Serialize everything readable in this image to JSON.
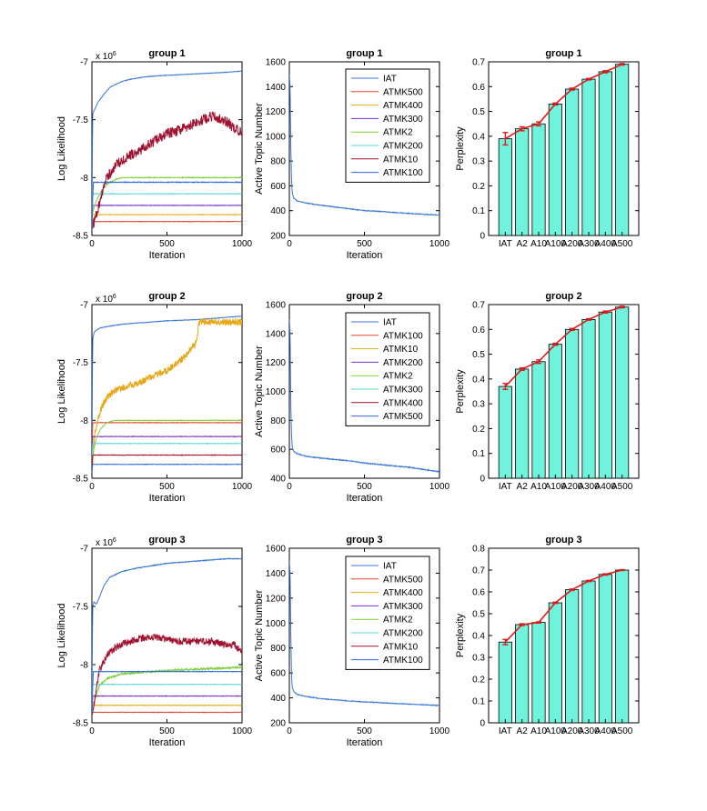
{
  "figure": {
    "rows": 3,
    "columns": [
      "log_likelihood",
      "active_topics",
      "perplexity"
    ]
  },
  "chart_data": [
    {
      "type": "line",
      "panel": "loglik",
      "group": 1,
      "title": "group 1",
      "xlabel": "Iteration",
      "ylabel": "Log Likelihood",
      "exponent_label": "x 10",
      "exponent_power": "6",
      "xlim": [
        0,
        1000
      ],
      "ylim": [
        -8.5,
        -7
      ],
      "xticks": [
        0,
        500,
        1000
      ],
      "xticklabels": [
        "0",
        "500",
        "1000"
      ],
      "yticks": [
        -8.5,
        -8,
        -7.5,
        -7
      ],
      "yticklabels": [
        "-8.5",
        "-8",
        "-7.5",
        "-7"
      ],
      "series": [
        {
          "name": "IAT",
          "color": "#3a78d8",
          "x": [
            0,
            5,
            15,
            40,
            80,
            120,
            150,
            200,
            260,
            350,
            450,
            600,
            750,
            900,
            1000
          ],
          "y": [
            -8.45,
            -7.45,
            -7.42,
            -7.35,
            -7.28,
            -7.22,
            -7.2,
            -7.17,
            -7.15,
            -7.13,
            -7.12,
            -7.11,
            -7.1,
            -7.09,
            -7.08
          ],
          "noise": 0.002
        },
        {
          "name": "ATMK500",
          "color": "#e2492f",
          "x": [
            0,
            5,
            1000
          ],
          "y": [
            -8.45,
            -8.38,
            -8.38
          ],
          "noise": 0.002
        },
        {
          "name": "ATMK400",
          "color": "#e6a817",
          "x": [
            0,
            5,
            1000
          ],
          "y": [
            -8.45,
            -8.32,
            -8.32
          ],
          "noise": 0.002
        },
        {
          "name": "ATMK300",
          "color": "#7c2fc4",
          "x": [
            0,
            5,
            1000
          ],
          "y": [
            -8.45,
            -8.24,
            -8.24
          ],
          "noise": 0.002
        },
        {
          "name": "ATMK2",
          "color": "#7ed13a",
          "x": [
            0,
            5,
            30,
            60,
            100,
            150,
            200,
            1000
          ],
          "y": [
            -8.45,
            -8.3,
            -8.2,
            -8.12,
            -8.06,
            -8.02,
            -8.0,
            -8.0
          ],
          "noise": 0.003
        },
        {
          "name": "ATMK200",
          "color": "#5bd6d8",
          "x": [
            0,
            5,
            1000
          ],
          "y": [
            -8.45,
            -8.14,
            -8.14
          ],
          "noise": 0.002
        },
        {
          "name": "ATMK10",
          "color": "#a0102f",
          "x": [
            0,
            100,
            150,
            200,
            300,
            400,
            500,
            600,
            700,
            800,
            900,
            950,
            1000
          ],
          "y": [
            -8.45,
            -8.0,
            -7.9,
            -7.85,
            -7.78,
            -7.7,
            -7.62,
            -7.58,
            -7.52,
            -7.47,
            -7.52,
            -7.58,
            -7.6
          ],
          "noise": 0.045
        },
        {
          "name": "ATMK100",
          "color": "#2f6cd6",
          "x": [
            0,
            5,
            10,
            1000
          ],
          "y": [
            -8.45,
            -8.2,
            -8.04,
            -8.04
          ],
          "noise": 0.003
        }
      ]
    },
    {
      "type": "line",
      "panel": "topics",
      "group": 1,
      "title": "group 1",
      "xlabel": "Iteration",
      "ylabel": "Active Topic Number",
      "xlim": [
        0,
        1000
      ],
      "ylim": [
        200,
        1600
      ],
      "xticks": [
        0,
        500,
        1000
      ],
      "xticklabels": [
        "0",
        "500",
        "1000"
      ],
      "yticks": [
        200,
        400,
        600,
        800,
        1000,
        1200,
        1400,
        1600
      ],
      "yticklabels": [
        "200",
        "400",
        "600",
        "800",
        "1000",
        "1200",
        "1400",
        "1600"
      ],
      "legend": [
        "IAT",
        "ATMK500",
        "ATMK400",
        "ATMK300",
        "ATMK2",
        "ATMK200",
        "ATMK10",
        "ATMK100"
      ],
      "series": [
        {
          "name": "IAT",
          "color": "#3a78d8",
          "x": [
            0,
            5,
            10,
            15,
            20,
            30,
            50,
            80,
            120,
            200,
            300,
            400,
            500,
            600,
            700,
            800,
            900,
            1000
          ],
          "y": [
            1500,
            1400,
            900,
            620,
            540,
            500,
            480,
            470,
            460,
            445,
            430,
            415,
            400,
            395,
            385,
            378,
            370,
            365
          ],
          "noise": 3
        }
      ]
    },
    {
      "type": "bar",
      "panel": "perplexity",
      "group": 1,
      "title": "group 1",
      "ylabel": "Perplexity",
      "categories": [
        "IAT",
        "A2",
        "A10",
        "A100",
        "A200",
        "A300",
        "A400",
        "A500"
      ],
      "values": [
        0.39,
        0.43,
        0.45,
        0.53,
        0.59,
        0.63,
        0.66,
        0.69
      ],
      "errors": [
        0.025,
        0.008,
        0.008,
        0.004,
        0.004,
        0.003,
        0.004,
        0.003
      ],
      "ylim": [
        0,
        0.7
      ],
      "yticks": [
        0,
        0.1,
        0.2,
        0.3,
        0.4,
        0.5,
        0.6,
        0.7
      ],
      "yticklabels": [
        "0",
        "0.1",
        "0.2",
        "0.3",
        "0.4",
        "0.5",
        "0.6",
        "0.7"
      ],
      "bar_color": "#6ff3dc",
      "line_color": "#e21b1b"
    },
    {
      "type": "line",
      "panel": "loglik",
      "group": 2,
      "title": "group 2",
      "xlabel": "Iteration",
      "ylabel": "Log Likelihood",
      "exponent_label": "x 10",
      "exponent_power": "6",
      "xlim": [
        0,
        1000
      ],
      "ylim": [
        -8.5,
        -7
      ],
      "xticks": [
        0,
        500,
        1000
      ],
      "xticklabels": [
        "0",
        "500",
        "1000"
      ],
      "yticks": [
        -8.5,
        -8,
        -7.5,
        -7
      ],
      "yticklabels": [
        "-8.5",
        "-8",
        "-7.5",
        "-7"
      ],
      "series": [
        {
          "name": "IAT",
          "color": "#3a78d8",
          "x": [
            0,
            5,
            15,
            30,
            60,
            100,
            200,
            300,
            500,
            700,
            900,
            1000
          ],
          "y": [
            -8.45,
            -7.3,
            -7.24,
            -7.22,
            -7.2,
            -7.19,
            -7.17,
            -7.16,
            -7.14,
            -7.13,
            -7.11,
            -7.1
          ],
          "noise": 0.002
        },
        {
          "name": "ATMK100",
          "color": "#e2492f",
          "x": [
            0,
            5,
            1000
          ],
          "y": [
            -8.45,
            -8.02,
            -8.02
          ],
          "noise": 0.002
        },
        {
          "name": "ATMK10",
          "color": "#e6a817",
          "x": [
            0,
            20,
            60,
            100,
            150,
            200,
            300,
            400,
            500,
            550,
            600,
            650,
            700,
            710,
            720,
            1000
          ],
          "y": [
            -8.45,
            -8.1,
            -7.9,
            -7.8,
            -7.75,
            -7.72,
            -7.68,
            -7.62,
            -7.57,
            -7.52,
            -7.47,
            -7.4,
            -7.32,
            -7.18,
            -7.15,
            -7.15
          ],
          "noise": 0.03
        },
        {
          "name": "ATMK200",
          "color": "#7c2fc4",
          "x": [
            0,
            5,
            1000
          ],
          "y": [
            -8.45,
            -8.14,
            -8.14
          ],
          "noise": 0.002
        },
        {
          "name": "ATMK2",
          "color": "#7ed13a",
          "x": [
            0,
            5,
            30,
            60,
            100,
            150,
            1000
          ],
          "y": [
            -8.45,
            -8.3,
            -8.15,
            -8.07,
            -8.02,
            -8.0,
            -8.0
          ],
          "noise": 0.002
        },
        {
          "name": "ATMK300",
          "color": "#5bd6d8",
          "x": [
            0,
            5,
            1000
          ],
          "y": [
            -8.45,
            -8.2,
            -8.2
          ],
          "noise": 0.002
        },
        {
          "name": "ATMK400",
          "color": "#a0102f",
          "x": [
            0,
            5,
            1000
          ],
          "y": [
            -8.45,
            -8.3,
            -8.3
          ],
          "noise": 0.002
        },
        {
          "name": "ATMK500",
          "color": "#2f6cd6",
          "x": [
            0,
            5,
            1000
          ],
          "y": [
            -8.45,
            -8.38,
            -8.38
          ],
          "noise": 0.002
        }
      ]
    },
    {
      "type": "line",
      "panel": "topics",
      "group": 2,
      "title": "group 2",
      "xlabel": "Iteration",
      "ylabel": "Active Topic Number",
      "xlim": [
        0,
        1000
      ],
      "ylim": [
        400,
        1600
      ],
      "xticks": [
        0,
        500,
        1000
      ],
      "xticklabels": [
        "0",
        "500",
        "1000"
      ],
      "yticks": [
        400,
        600,
        800,
        1000,
        1200,
        1400,
        1600
      ],
      "yticklabels": [
        "400",
        "600",
        "800",
        "1000",
        "1200",
        "1400",
        "1600"
      ],
      "legend": [
        "IAT",
        "ATMK100",
        "ATMK10",
        "ATMK200",
        "ATMK2",
        "ATMK300",
        "ATMK400",
        "ATMK500"
      ],
      "series": [
        {
          "name": "IAT",
          "color": "#3a78d8",
          "x": [
            0,
            5,
            10,
            15,
            20,
            30,
            50,
            80,
            120,
            200,
            300,
            400,
            500,
            600,
            700,
            800,
            900,
            1000
          ],
          "y": [
            1500,
            1400,
            900,
            680,
            610,
            585,
            570,
            560,
            550,
            540,
            530,
            520,
            505,
            495,
            485,
            475,
            460,
            445
          ],
          "noise": 3
        }
      ]
    },
    {
      "type": "bar",
      "panel": "perplexity",
      "group": 2,
      "title": "group 2",
      "ylabel": "Perplexity",
      "categories": [
        "IAT",
        "A2",
        "A10",
        "A100",
        "A200",
        "A300",
        "A400",
        "A500"
      ],
      "values": [
        0.37,
        0.44,
        0.47,
        0.54,
        0.6,
        0.64,
        0.67,
        0.69
      ],
      "errors": [
        0.012,
        0.005,
        0.007,
        0.004,
        0.004,
        0.003,
        0.004,
        0.003
      ],
      "ylim": [
        0,
        0.7
      ],
      "yticks": [
        0,
        0.1,
        0.2,
        0.3,
        0.4,
        0.5,
        0.6,
        0.7
      ],
      "yticklabels": [
        "0",
        "0.1",
        "0.2",
        "0.3",
        "0.4",
        "0.5",
        "0.6",
        "0.7"
      ],
      "bar_color": "#6ff3dc",
      "line_color": "#e21b1b"
    },
    {
      "type": "line",
      "panel": "loglik",
      "group": 3,
      "title": "group 3",
      "xlabel": "Iteration",
      "ylabel": "Log Likelihood",
      "exponent_label": "x 10",
      "exponent_power": "6",
      "xlim": [
        0,
        1000
      ],
      "ylim": [
        -8.5,
        -7
      ],
      "xticks": [
        0,
        500,
        1000
      ],
      "xticklabels": [
        "0",
        "500",
        "1000"
      ],
      "yticks": [
        -8.5,
        -8,
        -7.5,
        -7
      ],
      "yticklabels": [
        "-8.5",
        "-8",
        "-7.5",
        "-7"
      ],
      "series": [
        {
          "name": "IAT",
          "color": "#3a78d8",
          "x": [
            0,
            5,
            15,
            30,
            50,
            80,
            120,
            200,
            300,
            400,
            500,
            600,
            700,
            800,
            900,
            1000
          ],
          "y": [
            -8.45,
            -7.5,
            -7.46,
            -7.48,
            -7.42,
            -7.32,
            -7.25,
            -7.2,
            -7.17,
            -7.15,
            -7.13,
            -7.12,
            -7.11,
            -7.1,
            -7.09,
            -7.09
          ],
          "noise": 0.003
        },
        {
          "name": "ATMK500",
          "color": "#e2492f",
          "x": [
            0,
            5,
            1000
          ],
          "y": [
            -8.45,
            -8.41,
            -8.41
          ],
          "noise": 0.002
        },
        {
          "name": "ATMK400",
          "color": "#e6a817",
          "x": [
            0,
            5,
            1000
          ],
          "y": [
            -8.45,
            -8.35,
            -8.35
          ],
          "noise": 0.002
        },
        {
          "name": "ATMK300",
          "color": "#7c2fc4",
          "x": [
            0,
            5,
            1000
          ],
          "y": [
            -8.45,
            -8.27,
            -8.27
          ],
          "noise": 0.002
        },
        {
          "name": "ATMK2",
          "color": "#7ed13a",
          "x": [
            0,
            20,
            50,
            100,
            150,
            200,
            300,
            500,
            700,
            900,
            1000
          ],
          "y": [
            -8.45,
            -8.3,
            -8.18,
            -8.12,
            -8.1,
            -8.08,
            -8.07,
            -8.05,
            -8.04,
            -8.03,
            -8.02
          ],
          "noise": 0.008
        },
        {
          "name": "ATMK200",
          "color": "#5bd6d8",
          "x": [
            0,
            5,
            1000
          ],
          "y": [
            -8.45,
            -8.17,
            -8.17
          ],
          "noise": 0.002
        },
        {
          "name": "ATMK10",
          "color": "#a0102f",
          "x": [
            0,
            50,
            100,
            150,
            200,
            300,
            400,
            500,
            600,
            700,
            800,
            900,
            950,
            1000
          ],
          "y": [
            -8.45,
            -8.05,
            -7.92,
            -7.86,
            -7.82,
            -7.78,
            -7.76,
            -7.78,
            -7.8,
            -7.8,
            -7.8,
            -7.83,
            -7.83,
            -7.9
          ],
          "noise": 0.03
        },
        {
          "name": "ATMK100",
          "color": "#2f6cd6",
          "x": [
            0,
            5,
            10,
            1000
          ],
          "y": [
            -8.45,
            -8.2,
            -8.06,
            -8.06
          ],
          "noise": 0.002
        }
      ]
    },
    {
      "type": "line",
      "panel": "topics",
      "group": 3,
      "title": "group 3",
      "xlabel": "Iteration",
      "ylabel": "Active Topic Number",
      "xlim": [
        0,
        1000
      ],
      "ylim": [
        200,
        1600
      ],
      "xticks": [
        0,
        500,
        1000
      ],
      "xticklabels": [
        "0",
        "500",
        "1000"
      ],
      "yticks": [
        200,
        400,
        600,
        800,
        1000,
        1200,
        1400,
        1600
      ],
      "yticklabels": [
        "200",
        "400",
        "600",
        "800",
        "1000",
        "1200",
        "1400",
        "1600"
      ],
      "legend": [
        "IAT",
        "ATMK500",
        "ATMK400",
        "ATMK300",
        "ATMK2",
        "ATMK200",
        "ATMK10",
        "ATMK100"
      ],
      "series": [
        {
          "name": "IAT",
          "color": "#3a78d8",
          "x": [
            0,
            5,
            10,
            15,
            20,
            30,
            50,
            80,
            120,
            200,
            300,
            400,
            500,
            600,
            700,
            800,
            900,
            1000
          ],
          "y": [
            1500,
            1400,
            900,
            560,
            480,
            450,
            430,
            420,
            410,
            395,
            385,
            375,
            368,
            362,
            355,
            350,
            345,
            338
          ],
          "noise": 3
        }
      ]
    },
    {
      "type": "bar",
      "panel": "perplexity",
      "group": 3,
      "title": "group 3",
      "ylabel": "Perplexity",
      "categories": [
        "IAT",
        "A2",
        "A10",
        "A100",
        "A200",
        "A300",
        "A400",
        "A500"
      ],
      "values": [
        0.37,
        0.45,
        0.46,
        0.55,
        0.61,
        0.65,
        0.68,
        0.7
      ],
      "errors": [
        0.012,
        0.004,
        0.003,
        0.003,
        0.003,
        0.003,
        0.003,
        0.002
      ],
      "ylim": [
        0,
        0.8
      ],
      "yticks": [
        0,
        0.1,
        0.2,
        0.3,
        0.4,
        0.5,
        0.6,
        0.7,
        0.8
      ],
      "yticklabels": [
        "0",
        "0.1",
        "0.2",
        "0.3",
        "0.4",
        "0.5",
        "0.6",
        "0.7",
        "0.8"
      ],
      "bar_color": "#6ff3dc",
      "line_color": "#e21b1b"
    }
  ]
}
